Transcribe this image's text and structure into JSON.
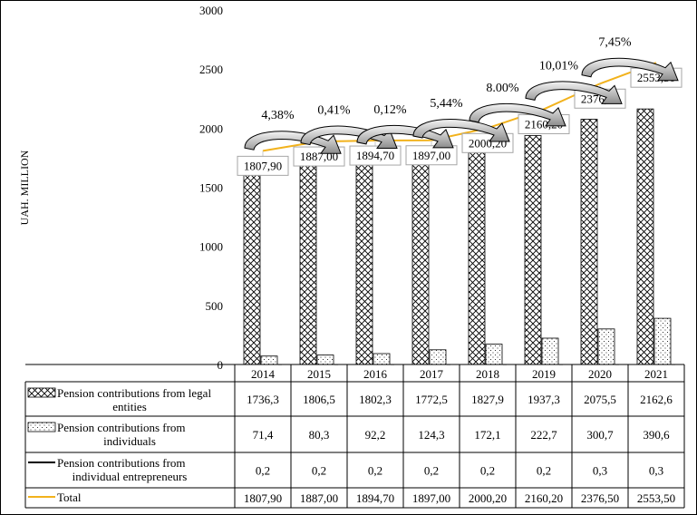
{
  "chart_data": {
    "type": "bar",
    "ylabel": "UAH. MILLION",
    "ylim": [
      0,
      3000
    ],
    "yticks": [
      "0",
      "500",
      "1000",
      "1500",
      "2000",
      "2500",
      "3000"
    ],
    "categories": [
      "2014",
      "2015",
      "2016",
      "2017",
      "2018",
      "2019",
      "2020",
      "2021"
    ],
    "series": [
      {
        "name": "Pension contributions from legal entities",
        "kind": "bar",
        "pattern": "crosshatch",
        "values": [
          1736.3,
          1806.5,
          1802.3,
          1772.5,
          1827.9,
          1937.3,
          2075.5,
          2162.6
        ],
        "labels": [
          "1736,3",
          "1806,5",
          "1802,3",
          "1772,5",
          "1827,9",
          "1937,3",
          "2075,5",
          "2162,6"
        ]
      },
      {
        "name": "Pension contributions from individuals",
        "kind": "bar",
        "pattern": "dots",
        "values": [
          71.4,
          80.3,
          92.2,
          124.3,
          172.1,
          222.7,
          300.7,
          390.6
        ],
        "labels": [
          "71,4",
          "80,3",
          "92,2",
          "124,3",
          "172,1",
          "222,7",
          "300,7",
          "390,6"
        ]
      },
      {
        "name": "Pension contributions from individual entrepreneurs",
        "kind": "bar",
        "color": "#000000",
        "values": [
          0.2,
          0.2,
          0.2,
          0.2,
          0.2,
          0.2,
          0.3,
          0.3
        ],
        "labels": [
          "0,2",
          "0,2",
          "0,2",
          "0,2",
          "0,2",
          "0,2",
          "0,3",
          "0,3"
        ]
      },
      {
        "name": "Total",
        "kind": "line",
        "color": "#F2B21C",
        "values": [
          1807.9,
          1887.0,
          1894.7,
          1897.0,
          2000.2,
          2160.2,
          2376.5,
          2553.5
        ],
        "labels": [
          "1807,90",
          "1887,00",
          "1894,70",
          "1897,00",
          "2000,20",
          "2160,20",
          "2376,50",
          "2553,50"
        ]
      }
    ],
    "growth_annotations": [
      "4,38%",
      "0,41%",
      "0,12%",
      "5,44%",
      "8.00%",
      "10,01%",
      "7,45%"
    ]
  }
}
